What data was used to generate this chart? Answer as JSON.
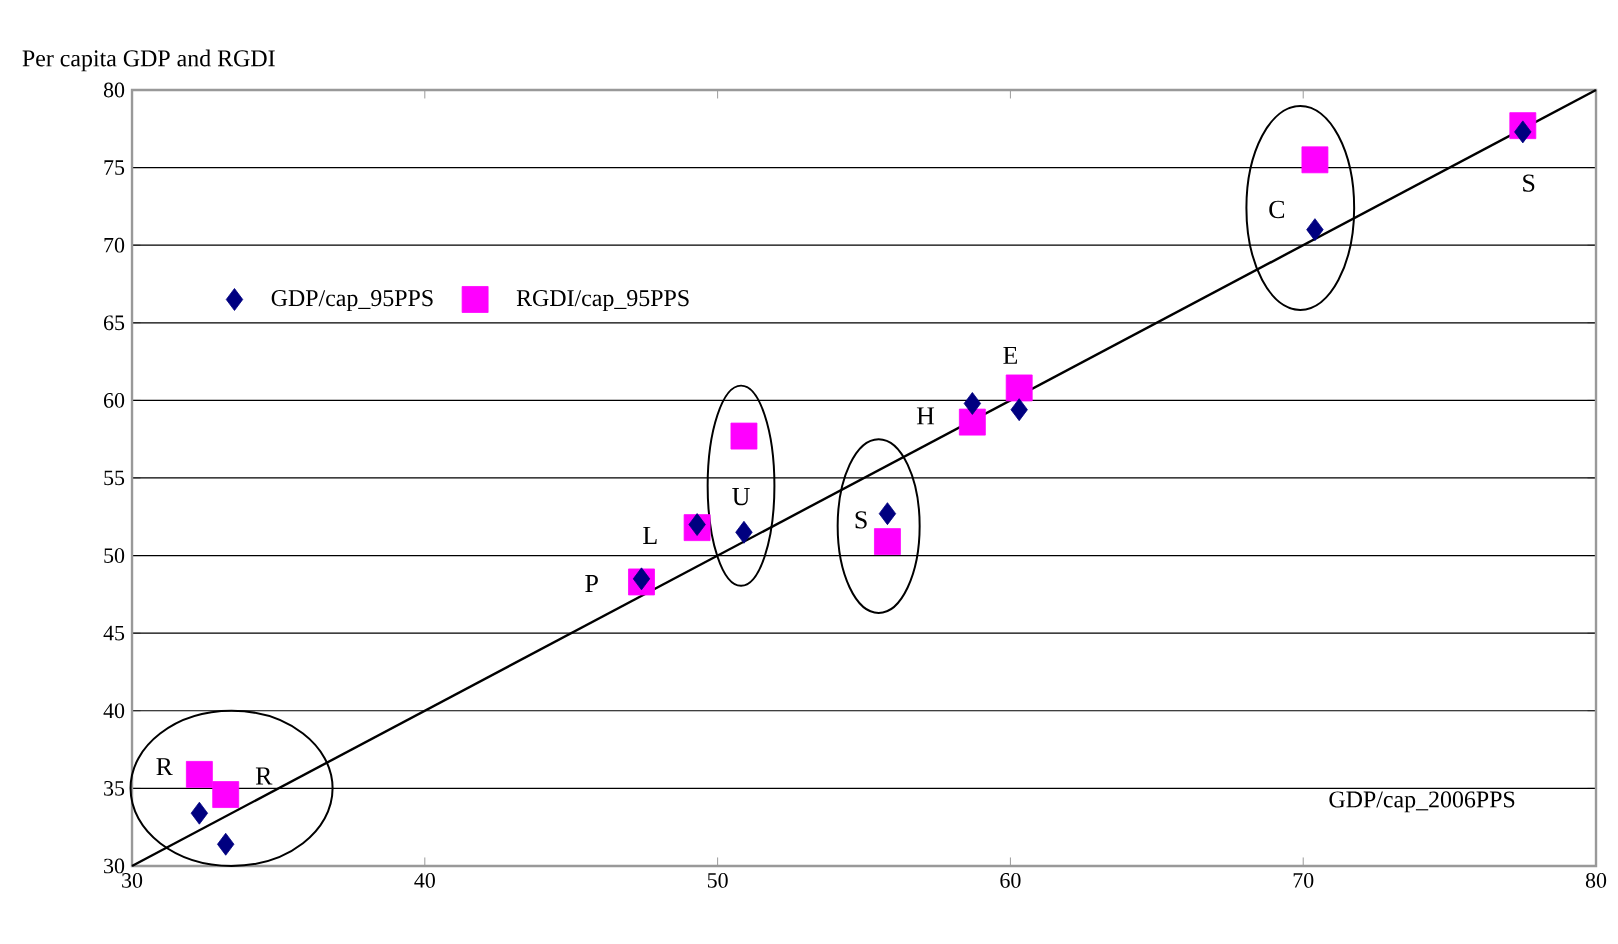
{
  "chart_data": {
    "type": "scatter",
    "ylabel": "Per capita GDP and RGDI",
    "xlabel": "GDP/cap_2006PPS",
    "x": [
      32.3,
      33.2,
      47.4,
      49.3,
      50.9,
      55.8,
      58.7,
      60.3,
      70.4,
      77.5
    ],
    "series": [
      {
        "name": "GDP/cap_95PPS",
        "color": "#000080",
        "marker": "diamond",
        "values": [
          33.4,
          31.4,
          48.5,
          52.0,
          51.5,
          52.7,
          59.8,
          59.4,
          71.0,
          77.3
        ]
      },
      {
        "name": "RGDI/cap_95PPS",
        "color": "#ff00ff",
        "marker": "square",
        "values": [
          35.9,
          34.6,
          48.3,
          51.8,
          57.7,
          50.9,
          58.6,
          60.8,
          75.5,
          77.7
        ]
      },
      {
        "type": "line",
        "color": "#000000",
        "line_style": "solid",
        "x": [
          30,
          80
        ],
        "values": [
          30,
          80
        ]
      }
    ],
    "annotations": [
      {
        "text": "R",
        "x": 32.3,
        "y": 33.4
      },
      {
        "text": "R",
        "x": 33.2,
        "y": 31.4
      },
      {
        "text": "P",
        "x": 47.4,
        "y": 48.5
      },
      {
        "text": "L",
        "x": 49.3,
        "y": 52.0
      },
      {
        "text": "U",
        "x": 50.9,
        "y": 51.5
      },
      {
        "text": "S",
        "x": 55.8,
        "y": 52.7
      },
      {
        "text": "H",
        "x": 58.7,
        "y": 59.8
      },
      {
        "text": "E",
        "x": 60.3,
        "y": 59.4
      },
      {
        "text": "C",
        "x": 70.4,
        "y": 71.0
      },
      {
        "text": "S",
        "x": 77.5,
        "y": 77.3
      }
    ],
    "xlim": [
      30,
      80
    ],
    "ylim": [
      30,
      80
    ],
    "xticks": [
      30,
      40,
      50,
      60,
      70,
      80
    ],
    "yticks": [
      30,
      35,
      40,
      45,
      50,
      55,
      60,
      65,
      70,
      75,
      80
    ],
    "grid": "y",
    "legend": "left"
  }
}
